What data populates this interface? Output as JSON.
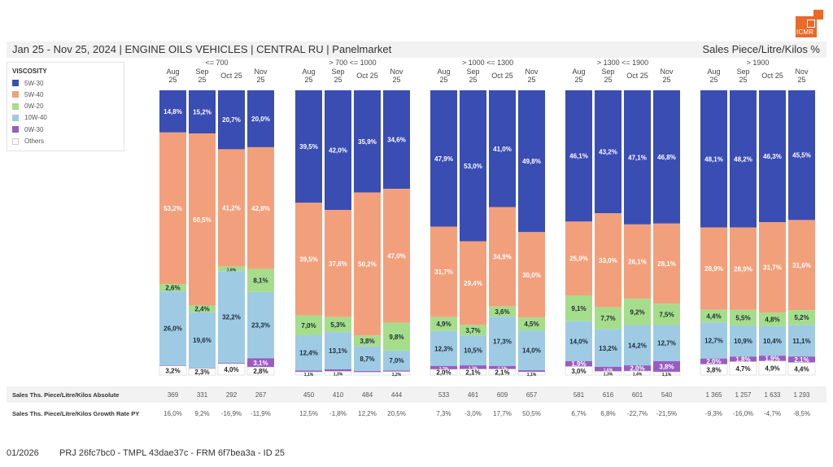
{
  "header": {
    "title": "Jan 25 - Nov 25, 2024 | ENGINE OILS VEHICLES | CENTRAL RU | Panelmarket",
    "unit": "Sales Piece/Litre/Kilos %"
  },
  "logo": {
    "text": "ICMR",
    "color": "#e8692a"
  },
  "legend": {
    "title": "VISCOSITY",
    "items": [
      {
        "label": "5W-30",
        "color": "#3a4db3"
      },
      {
        "label": "5W-40",
        "color": "#f2a07b"
      },
      {
        "label": "0W-20",
        "color": "#a6dd8a"
      },
      {
        "label": "10W-40",
        "color": "#9ecbe3"
      },
      {
        "label": "0W-30",
        "color": "#9a5cc0"
      },
      {
        "label": "Others",
        "color": "#ffffff"
      }
    ]
  },
  "table": {
    "absolute_label": "Sales Ths. Piece/Litre/Kilos Absolute",
    "growth_label": "Sales Ths. Piece/Litre/Kilos Growth Rate PY"
  },
  "footer": {
    "date": "01/2026",
    "ids": "PRJ 26fc7bc0 - TMPL 43dae37c - FRM 6f7bea3a - ID 25"
  },
  "chart_data": {
    "type": "bar",
    "stacked": "100%",
    "title": "Jan 25 - Nov 25, 2024 | ENGINE OILS VEHICLES | CENTRAL RU | Panelmarket",
    "ylabel": "Sales Piece/Litre/Kilos %",
    "ylim": [
      0,
      100
    ],
    "legend_title": "VISCOSITY",
    "legend_position": "top-left",
    "series_names": [
      "5W-30",
      "5W-40",
      "0W-20",
      "10W-40",
      "0W-30",
      "Others"
    ],
    "groups": [
      {
        "label": "<= 700",
        "columns": [
          {
            "month": "Aug 25",
            "values": [
              14.8,
              53.2,
              2.6,
              26.0,
              0.2,
              3.2
            ],
            "labels": [
              "14,8%",
              "53,2%",
              "2,6%",
              "26,0%",
              "",
              "3,2%"
            ],
            "absolute": "369",
            "growth": "16,0%"
          },
          {
            "month": "Sep 25",
            "values": [
              15.2,
              60.5,
              2.4,
              19.6,
              0.2,
              2.3
            ],
            "labels": [
              "15,2%",
              "60,5%",
              "2,4%",
              "19,6%",
              "",
              "2,3%"
            ],
            "absolute": "331",
            "growth": "9,2%"
          },
          {
            "month": "Oct 25",
            "values": [
              20.7,
              41.2,
              1.6,
              32.2,
              0.3,
              4.0
            ],
            "labels": [
              "20,7%",
              "41,2%",
              "1,6%",
              "32,2%",
              "",
              "4,0%"
            ],
            "absolute": "292",
            "growth": "-16,9%"
          },
          {
            "month": "Nov 25",
            "values": [
              20.0,
              42.8,
              8.1,
              23.3,
              3.1,
              2.8
            ],
            "labels": [
              "20,0%",
              "42,8%",
              "8,1%",
              "23,3%",
              "3,1%",
              "2,8%"
            ],
            "absolute": "267",
            "growth": "-11,9%"
          }
        ]
      },
      {
        "label": "> 700 <= 1000",
        "columns": [
          {
            "month": "Aug 25",
            "values": [
              39.5,
              39.5,
              7.0,
              12.4,
              0.5,
              1.1
            ],
            "labels": [
              "39,5%",
              "39,5%",
              "7,0%",
              "12,4%",
              "",
              "1,1%"
            ],
            "absolute": "450",
            "growth": "12,5%"
          },
          {
            "month": "Sep 25",
            "values": [
              42.0,
              37.6,
              5.3,
              13.1,
              0.7,
              1.3
            ],
            "labels": [
              "42,0%",
              "37,6%",
              "5,3%",
              "13,1%",
              "",
              "1,3%"
            ],
            "absolute": "410",
            "growth": "-1,8%"
          },
          {
            "month": "Oct 25",
            "values": [
              35.9,
              50.2,
              3.8,
              8.7,
              0.4,
              1.0
            ],
            "labels": [
              "35,9%",
              "50,2%",
              "3,8%",
              "8,7%",
              "",
              ""
            ],
            "absolute": "484",
            "growth": "12,2%"
          },
          {
            "month": "Nov 25",
            "values": [
              34.6,
              47.0,
              9.8,
              7.0,
              0.4,
              1.2
            ],
            "labels": [
              "34,6%",
              "47,0%",
              "9,8%",
              "7,0%",
              "",
              "1,2%"
            ],
            "absolute": "444",
            "growth": "20,5%"
          }
        ]
      },
      {
        "label": "> 1000 <= 1300",
        "columns": [
          {
            "month": "Aug 25",
            "values": [
              47.9,
              31.7,
              4.9,
              12.3,
              1.2,
              2.0
            ],
            "labels": [
              "47,9%",
              "31,7%",
              "4,9%",
              "12,3%",
              "1,2%",
              "2,0%"
            ],
            "absolute": "533",
            "growth": "7,3%"
          },
          {
            "month": "Sep 25",
            "values": [
              53.0,
              29.4,
              3.7,
              10.5,
              1.3,
              2.1
            ],
            "labels": [
              "53,0%",
              "29,4%",
              "3,7%",
              "10,5%",
              "1,3%",
              "2,1%"
            ],
            "absolute": "461",
            "growth": "-3,0%"
          },
          {
            "month": "Oct 25",
            "values": [
              41.0,
              34.9,
              3.6,
              17.3,
              1.1,
              2.1
            ],
            "labels": [
              "41,0%",
              "34,9%",
              "3,6%",
              "17,3%",
              "1,1%",
              "2,1%"
            ],
            "absolute": "609",
            "growth": "17,7%"
          },
          {
            "month": "Nov 25",
            "values": [
              49.8,
              30.0,
              4.5,
              14.0,
              0.6,
              1.1
            ],
            "labels": [
              "49,8%",
              "30,0%",
              "4,5%",
              "14,0%",
              "",
              "1,1%"
            ],
            "absolute": "657",
            "growth": "50,5%"
          }
        ]
      },
      {
        "label": "> 1300 <= 1900",
        "columns": [
          {
            "month": "Aug 25",
            "values": [
              46.1,
              25.9,
              9.1,
              14.0,
              1.9,
              3.0
            ],
            "labels": [
              "46,1%",
              "25,9%",
              "9,1%",
              "14,0%",
              "1,9%",
              "3,0%"
            ],
            "absolute": "581",
            "growth": "6,7%"
          },
          {
            "month": "Sep 25",
            "values": [
              43.2,
              33.0,
              7.7,
              13.2,
              1.6,
              1.3
            ],
            "labels": [
              "43,2%",
              "33,0%",
              "7,7%",
              "13,2%",
              "1,6%",
              "1,3%"
            ],
            "absolute": "616",
            "growth": "6,8%"
          },
          {
            "month": "Oct 25",
            "values": [
              47.1,
              26.1,
              9.2,
              14.2,
              2.0,
              1.4
            ],
            "labels": [
              "47,1%",
              "26,1%",
              "9,2%",
              "14,2%",
              "2,0%",
              "1,4%"
            ],
            "absolute": "601",
            "growth": "-22,7%"
          },
          {
            "month": "Nov 25",
            "values": [
              46.8,
              28.1,
              7.5,
              12.7,
              3.8,
              1.1
            ],
            "labels": [
              "46,8%",
              "28,1%",
              "7,5%",
              "12,7%",
              "3,8%",
              "1,1%"
            ],
            "absolute": "540",
            "growth": "-21,5%"
          }
        ]
      },
      {
        "label": "> 1900",
        "columns": [
          {
            "month": "Aug 25",
            "values": [
              48.1,
              28.9,
              4.4,
              12.7,
              2.0,
              3.8
            ],
            "labels": [
              "48,1%",
              "28,9%",
              "4,4%",
              "12,7%",
              "2,0%",
              "3,8%"
            ],
            "absolute": "1 365",
            "growth": "-9,3%"
          },
          {
            "month": "Sep 25",
            "values": [
              48.2,
              28.9,
              5.5,
              10.9,
              1.8,
              4.7
            ],
            "labels": [
              "48,2%",
              "28,9%",
              "5,5%",
              "10,9%",
              "1,8%",
              "4,7%"
            ],
            "absolute": "1 257",
            "growth": "-16,0%"
          },
          {
            "month": "Oct 25",
            "values": [
              46.3,
              31.7,
              4.8,
              10.4,
              1.9,
              4.9
            ],
            "labels": [
              "46,3%",
              "31,7%",
              "4,8%",
              "10,4%",
              "1,9%",
              "4,9%"
            ],
            "absolute": "1 633",
            "growth": "-4,7%"
          },
          {
            "month": "Nov 25",
            "values": [
              45.5,
              31.6,
              5.2,
              11.1,
              2.1,
              4.4
            ],
            "labels": [
              "45,5%",
              "31,6%",
              "5,2%",
              "11,1%",
              "2,1%",
              "4,4%"
            ],
            "absolute": "1 293",
            "growth": "-8,5%"
          }
        ]
      }
    ]
  }
}
